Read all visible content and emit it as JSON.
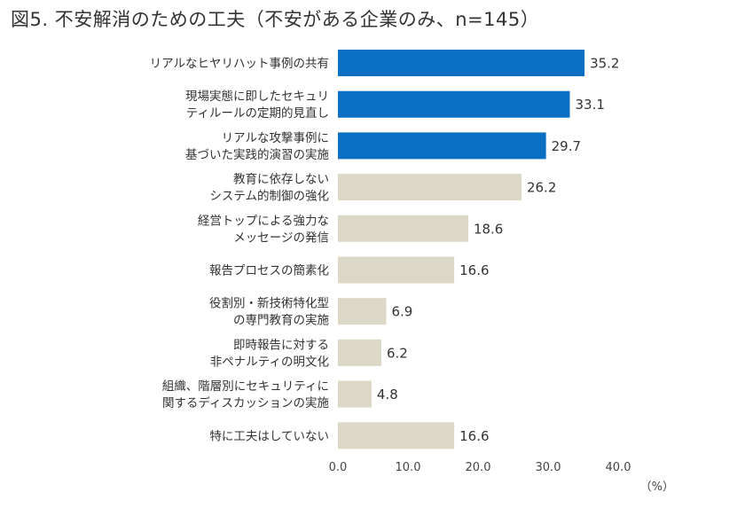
{
  "title": "図5. 不安解消のための工夫（不安がある企業のみ、n=145）",
  "chart_data": {
    "type": "bar",
    "orientation": "horizontal",
    "title": "図5. 不安解消のための工夫（不安がある企業のみ、n=145）",
    "unit_label": "（%）",
    "xlim": [
      0,
      40
    ],
    "ticks": [
      "0.0",
      "10.0",
      "20.0",
      "30.0",
      "40.0"
    ],
    "tick_values": [
      0,
      10,
      20,
      30,
      40
    ],
    "grid": false,
    "highlight_color": "#0a6fc2",
    "base_color": "#dcd8c8",
    "categories": [
      [
        "リアルなヒヤリハット事例の共有"
      ],
      [
        "現場実態に即したセキュリ",
        "ティルールの定期的見直し"
      ],
      [
        "リアルな攻撃事例に",
        "基づいた実践的演習の実施"
      ],
      [
        "教育に依存しない",
        "システム的制御の強化"
      ],
      [
        "経営トップによる強力な",
        "メッセージの発信"
      ],
      [
        "報告プロセスの簡素化"
      ],
      [
        "役割別・新技術特化型",
        "の専門教育の実施"
      ],
      [
        "即時報告に対する",
        "非ペナルティの明文化"
      ],
      [
        "組織、階層別にセキュリティに",
        "関するディスカッションの実施"
      ],
      [
        "特に工夫はしていない"
      ]
    ],
    "values": [
      35.2,
      33.1,
      29.7,
      26.2,
      18.6,
      16.6,
      6.9,
      6.2,
      4.8,
      16.6
    ],
    "value_labels": [
      "35.2",
      "33.1",
      "29.7",
      "26.2",
      "18.6",
      "16.6",
      "6.9",
      "6.2",
      "4.8",
      "16.6"
    ],
    "highlighted": [
      true,
      true,
      true,
      false,
      false,
      false,
      false,
      false,
      false,
      false
    ]
  }
}
